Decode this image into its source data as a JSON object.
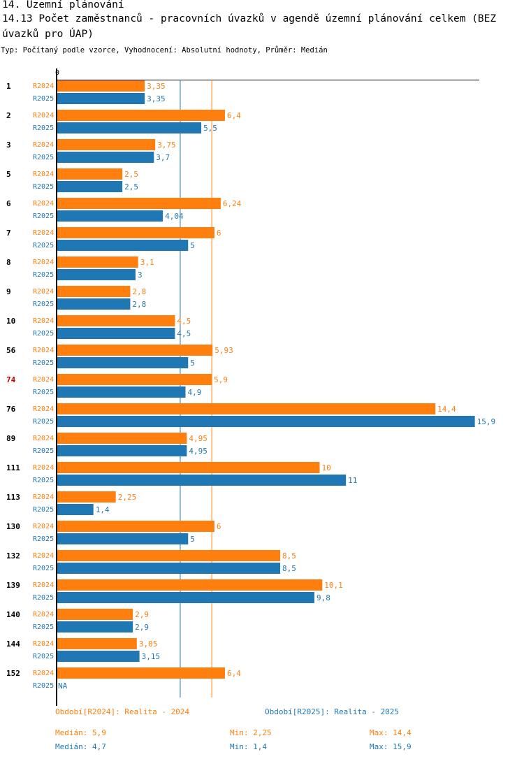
{
  "header": {
    "section_title": "14. Územní plánování",
    "indicator_title_line1": "14.13 Počet zaměstnanců - pracovních úvazků v agendě územní plánování celkem (BEZ",
    "indicator_title_line2": " úvazků pro ÚAP)",
    "subtitle": "Typ: Počítaný podle vzorce, Vyhodnocení: Absolutní hodnoty, Průměr: Medián"
  },
  "colors": {
    "r2024": "#ff7f0e",
    "r2025": "#1f77b4",
    "highlight": "#cc0000"
  },
  "chart_data": {
    "type": "bar",
    "orientation": "horizontal",
    "axis_zero_label": "0",
    "xlim": [
      0,
      15.9
    ],
    "categories": [
      "1",
      "2",
      "3",
      "5",
      "6",
      "7",
      "8",
      "9",
      "10",
      "56",
      "74",
      "76",
      "89",
      "111",
      "113",
      "130",
      "132",
      "139",
      "140",
      "144",
      "152"
    ],
    "highlight_category": "74",
    "series": [
      {
        "name": "R2024",
        "color": "#ff7f0e",
        "values": [
          3.35,
          6.4,
          3.75,
          2.5,
          6.24,
          6,
          3.1,
          2.8,
          4.5,
          5.93,
          5.9,
          14.4,
          4.95,
          10,
          2.25,
          6,
          8.5,
          10.1,
          2.9,
          3.05,
          6.4
        ],
        "labels": [
          "3,35",
          "6,4",
          "3,75",
          "2,5",
          "6,24",
          "6",
          "3,1",
          "2,8",
          "4,5",
          "5,93",
          "5,9",
          "14,4",
          "4,95",
          "10",
          "2,25",
          "6",
          "8,5",
          "10,1",
          "2,9",
          "3,05",
          "6,4"
        ]
      },
      {
        "name": "R2025",
        "color": "#1f77b4",
        "values": [
          3.35,
          5.5,
          3.7,
          2.5,
          4.04,
          5,
          3,
          2.8,
          4.5,
          5,
          4.9,
          15.9,
          4.95,
          11,
          1.4,
          5,
          8.5,
          9.8,
          2.9,
          3.15,
          null
        ],
        "labels": [
          "3,35",
          "5,5",
          "3,7",
          "2,5",
          "4,04",
          "5",
          "3",
          "2,8",
          "4,5",
          "5",
          "4,9",
          "15,9",
          "4,95",
          "11",
          "1,4",
          "5",
          "8,5",
          "9,8",
          "2,9",
          "3,15",
          "NA"
        ]
      }
    ],
    "median_lines": [
      {
        "series": "R2024",
        "value": 5.9
      },
      {
        "series": "R2025",
        "value": 4.7
      }
    ]
  },
  "legend": {
    "r2024": "Období[R2024]: Realita - 2024",
    "r2025": "Období[R2025]: Realita - 2025"
  },
  "stats": {
    "r2024": {
      "median": "Medián: 5,9",
      "min": "Min: 2,25",
      "max": "Max: 14,4"
    },
    "r2025": {
      "median": "Medián: 4,7",
      "min": "Min: 1,4",
      "max": "Max: 15,9"
    }
  }
}
